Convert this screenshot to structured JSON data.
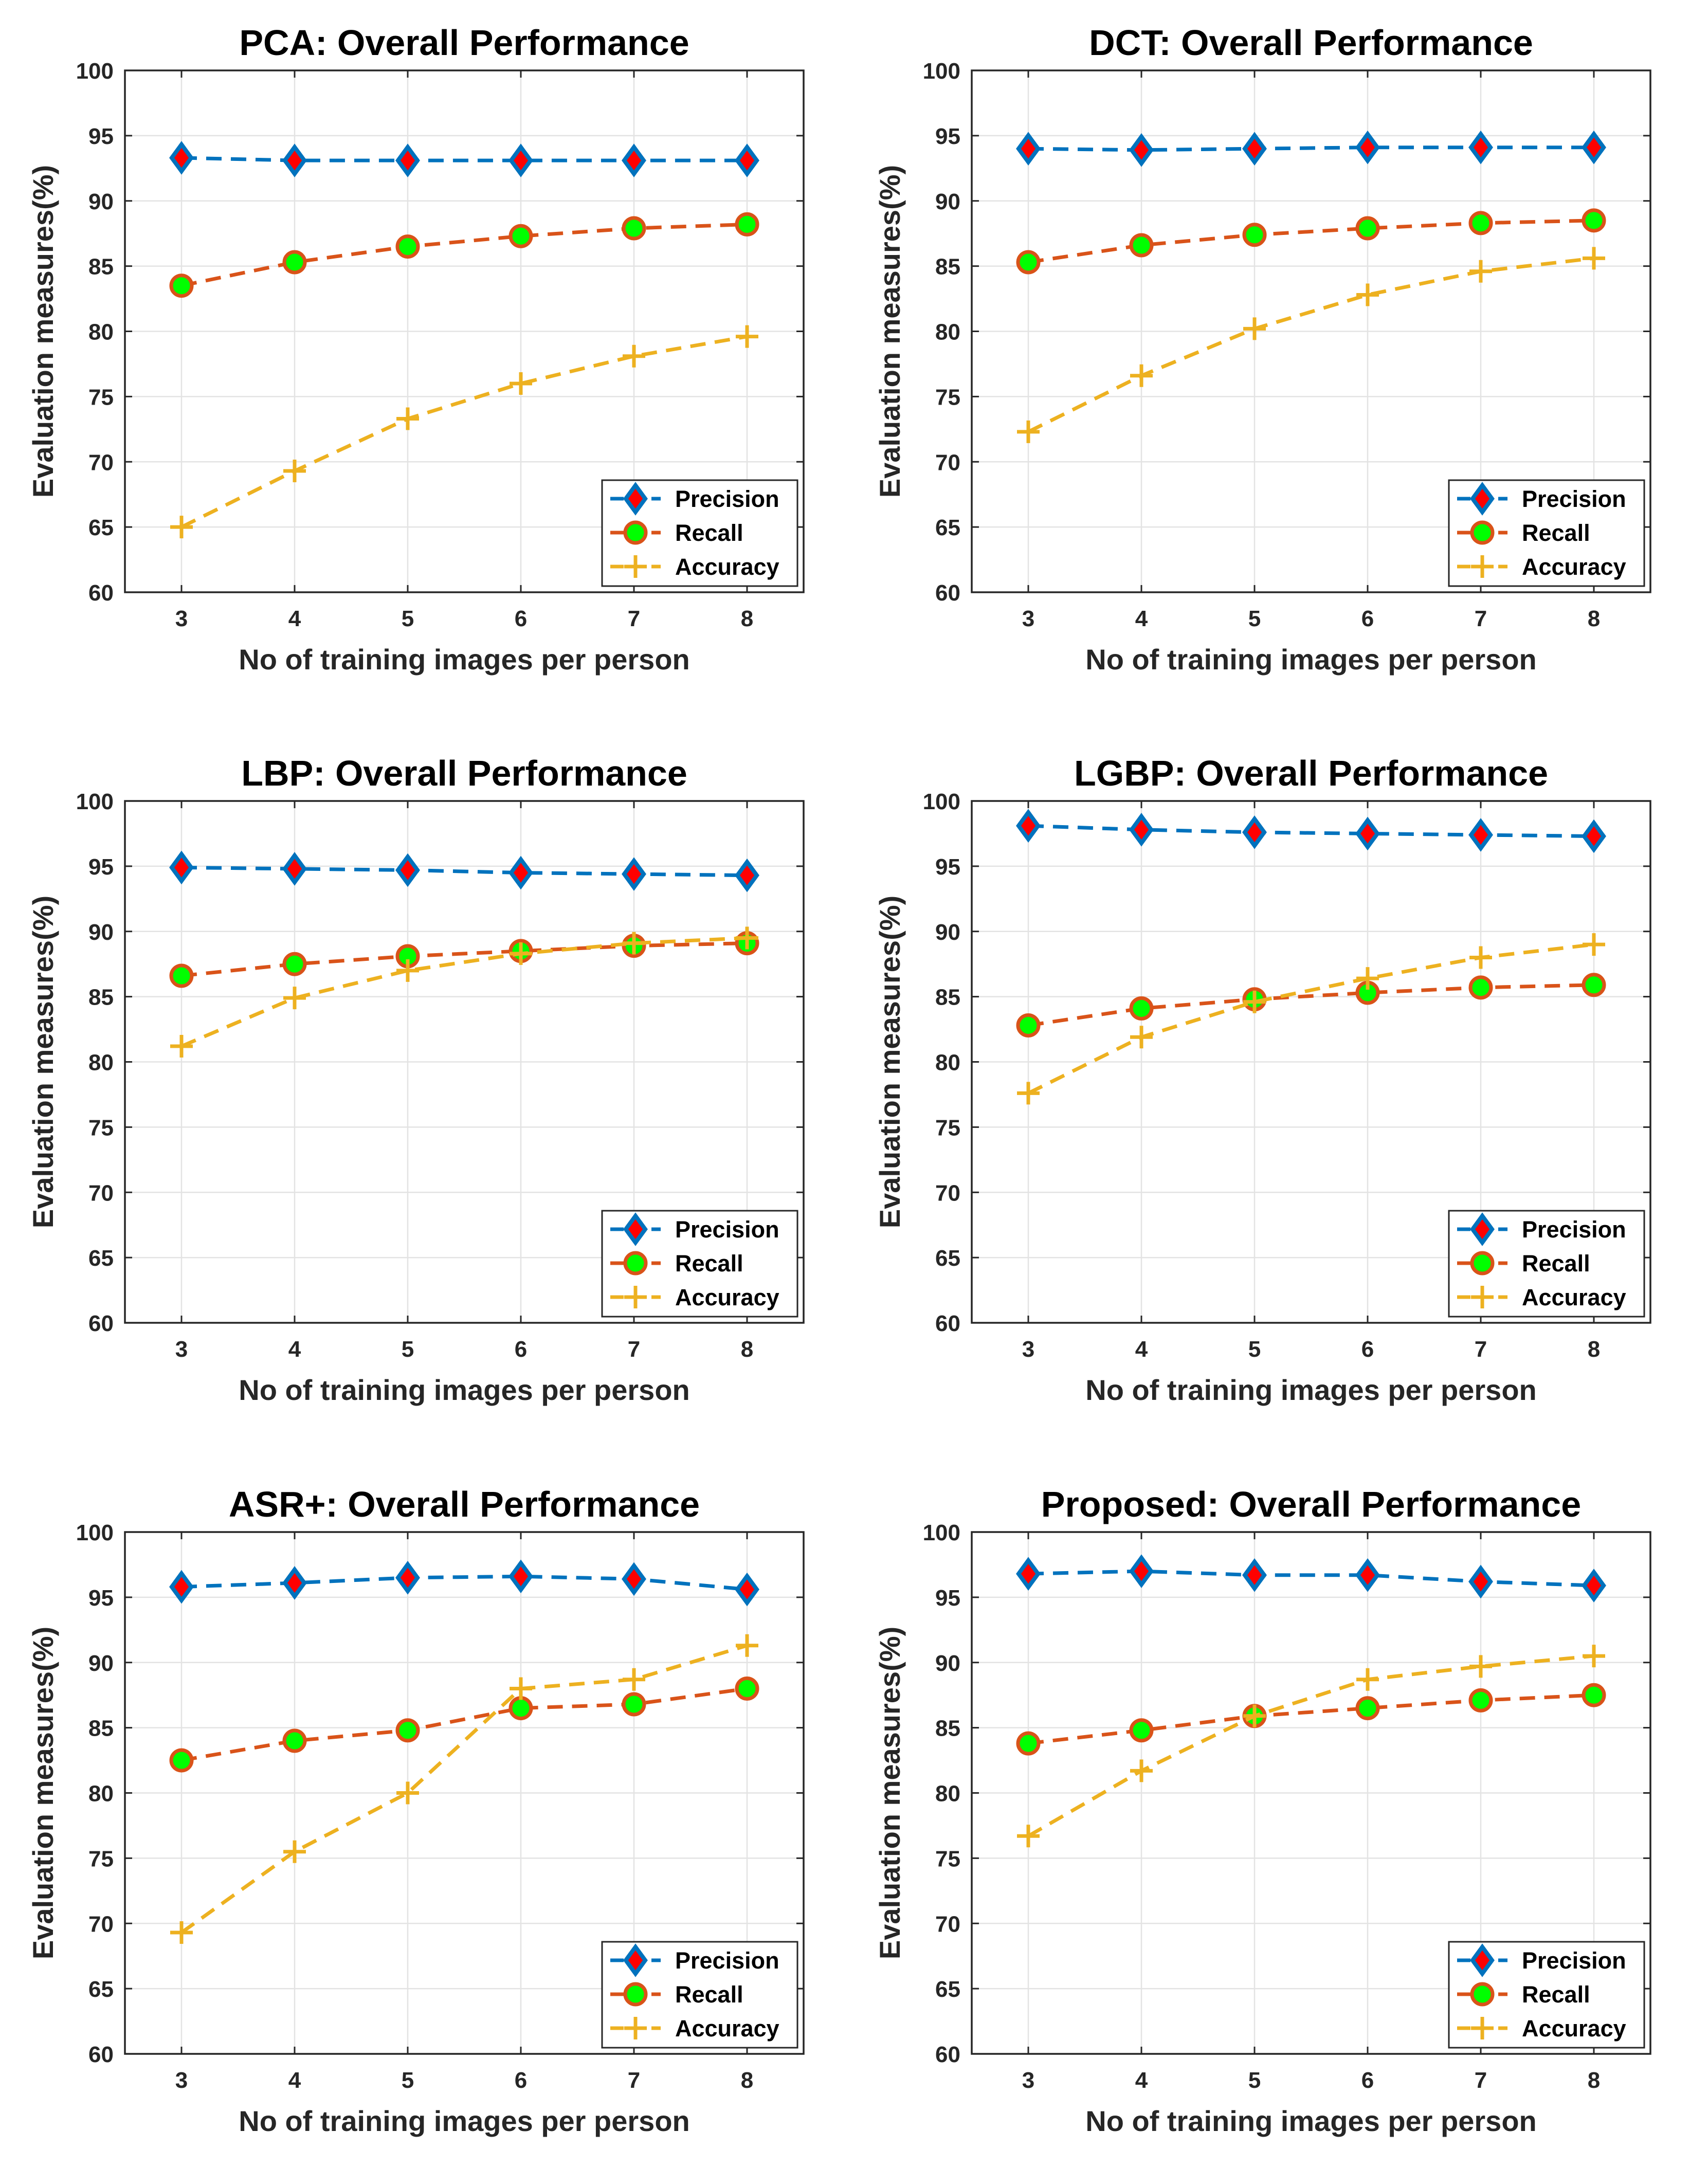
{
  "chart_data": [
    {
      "type": "line",
      "title": "PCA: Overall Performance",
      "xlabel": "No of training images per person",
      "ylabel": "Evaluation measures(%)",
      "x": [
        3,
        4,
        5,
        6,
        7,
        8
      ],
      "xlim": [
        2.5,
        8.5
      ],
      "ylim": [
        60,
        100
      ],
      "yticks": [
        60,
        65,
        70,
        75,
        80,
        85,
        90,
        95,
        100
      ],
      "grid": true,
      "legend_position": "bottom-right",
      "series": [
        {
          "name": "Precision",
          "values": [
            93.3,
            93.1,
            93.1,
            93.1,
            93.1,
            93.1
          ],
          "color": "#0072BD",
          "marker": "diamond"
        },
        {
          "name": "Recall",
          "values": [
            83.5,
            85.3,
            86.5,
            87.3,
            87.9,
            88.2
          ],
          "color": "#D95319",
          "marker": "circle"
        },
        {
          "name": "Accuracy",
          "values": [
            65.0,
            69.3,
            73.3,
            76.0,
            78.1,
            79.6
          ],
          "color": "#EDB120",
          "marker": "plus"
        }
      ]
    },
    {
      "type": "line",
      "title": "DCT: Overall Performance",
      "xlabel": "No of training images per person",
      "ylabel": "Evaluation measures(%)",
      "x": [
        3,
        4,
        5,
        6,
        7,
        8
      ],
      "xlim": [
        2.5,
        8.5
      ],
      "ylim": [
        60,
        100
      ],
      "yticks": [
        60,
        65,
        70,
        75,
        80,
        85,
        90,
        95,
        100
      ],
      "grid": true,
      "legend_position": "bottom-right",
      "series": [
        {
          "name": "Precision",
          "values": [
            94.0,
            93.9,
            94.0,
            94.1,
            94.1,
            94.1
          ],
          "color": "#0072BD",
          "marker": "diamond"
        },
        {
          "name": "Recall",
          "values": [
            85.3,
            86.6,
            87.4,
            87.9,
            88.3,
            88.5
          ],
          "color": "#D95319",
          "marker": "circle"
        },
        {
          "name": "Accuracy",
          "values": [
            72.3,
            76.6,
            80.2,
            82.8,
            84.6,
            85.6
          ],
          "color": "#EDB120",
          "marker": "plus"
        }
      ]
    },
    {
      "type": "line",
      "title": "LBP: Overall Performance",
      "xlabel": "No of training images per person",
      "ylabel": "Evaluation measures(%)",
      "x": [
        3,
        4,
        5,
        6,
        7,
        8
      ],
      "xlim": [
        2.5,
        8.5
      ],
      "ylim": [
        60,
        100
      ],
      "yticks": [
        60,
        65,
        70,
        75,
        80,
        85,
        90,
        95,
        100
      ],
      "grid": true,
      "legend_position": "bottom-right",
      "series": [
        {
          "name": "Precision",
          "values": [
            94.9,
            94.8,
            94.7,
            94.5,
            94.4,
            94.3
          ],
          "color": "#0072BD",
          "marker": "diamond"
        },
        {
          "name": "Recall",
          "values": [
            86.6,
            87.5,
            88.1,
            88.5,
            88.9,
            89.1
          ],
          "color": "#D95319",
          "marker": "circle"
        },
        {
          "name": "Accuracy",
          "values": [
            81.2,
            84.9,
            87.0,
            88.3,
            89.1,
            89.5
          ],
          "color": "#EDB120",
          "marker": "plus"
        }
      ]
    },
    {
      "type": "line",
      "title": "LGBP: Overall Performance",
      "xlabel": "No of training images per person",
      "ylabel": "Evaluation measures(%)",
      "x": [
        3,
        4,
        5,
        6,
        7,
        8
      ],
      "xlim": [
        2.5,
        8.5
      ],
      "ylim": [
        60,
        100
      ],
      "yticks": [
        60,
        65,
        70,
        75,
        80,
        85,
        90,
        95,
        100
      ],
      "grid": true,
      "legend_position": "bottom-right",
      "series": [
        {
          "name": "Precision",
          "values": [
            98.1,
            97.8,
            97.6,
            97.5,
            97.4,
            97.3
          ],
          "color": "#0072BD",
          "marker": "diamond"
        },
        {
          "name": "Recall",
          "values": [
            82.8,
            84.1,
            84.8,
            85.3,
            85.7,
            85.9
          ],
          "color": "#D95319",
          "marker": "circle"
        },
        {
          "name": "Accuracy",
          "values": [
            77.6,
            81.9,
            84.6,
            86.4,
            88.0,
            89.0
          ],
          "color": "#EDB120",
          "marker": "plus"
        }
      ]
    },
    {
      "type": "line",
      "title": "ASR+: Overall Performance",
      "xlabel": "No of training images per person",
      "ylabel": "Evaluation measures(%)",
      "x": [
        3,
        4,
        5,
        6,
        7,
        8
      ],
      "xlim": [
        2.5,
        8.5
      ],
      "ylim": [
        60,
        100
      ],
      "yticks": [
        60,
        65,
        70,
        75,
        80,
        85,
        90,
        95,
        100
      ],
      "grid": true,
      "legend_position": "bottom-right",
      "series": [
        {
          "name": "Precision",
          "values": [
            95.8,
            96.1,
            96.5,
            96.6,
            96.4,
            95.6
          ],
          "color": "#0072BD",
          "marker": "diamond"
        },
        {
          "name": "Recall",
          "values": [
            82.5,
            84.0,
            84.8,
            86.5,
            86.8,
            88.0
          ],
          "color": "#D95319",
          "marker": "circle"
        },
        {
          "name": "Accuracy",
          "values": [
            69.3,
            75.5,
            80.0,
            88.0,
            88.7,
            91.3
          ],
          "color": "#EDB120",
          "marker": "plus"
        }
      ]
    },
    {
      "type": "line",
      "title": "Proposed: Overall Performance",
      "xlabel": "No of training images per person",
      "ylabel": "Evaluation measures(%)",
      "x": [
        3,
        4,
        5,
        6,
        7,
        8
      ],
      "xlim": [
        2.5,
        8.5
      ],
      "ylim": [
        60,
        100
      ],
      "yticks": [
        60,
        65,
        70,
        75,
        80,
        85,
        90,
        95,
        100
      ],
      "grid": true,
      "legend_position": "bottom-right",
      "series": [
        {
          "name": "Precision",
          "values": [
            96.8,
            97.0,
            96.7,
            96.7,
            96.2,
            95.9
          ],
          "color": "#0072BD",
          "marker": "diamond"
        },
        {
          "name": "Recall",
          "values": [
            83.8,
            84.8,
            85.9,
            86.5,
            87.1,
            87.5
          ],
          "color": "#D95319",
          "marker": "circle"
        },
        {
          "name": "Accuracy",
          "values": [
            76.7,
            81.7,
            85.9,
            88.7,
            89.7,
            90.5
          ],
          "color": "#EDB120",
          "marker": "plus"
        }
      ]
    }
  ]
}
